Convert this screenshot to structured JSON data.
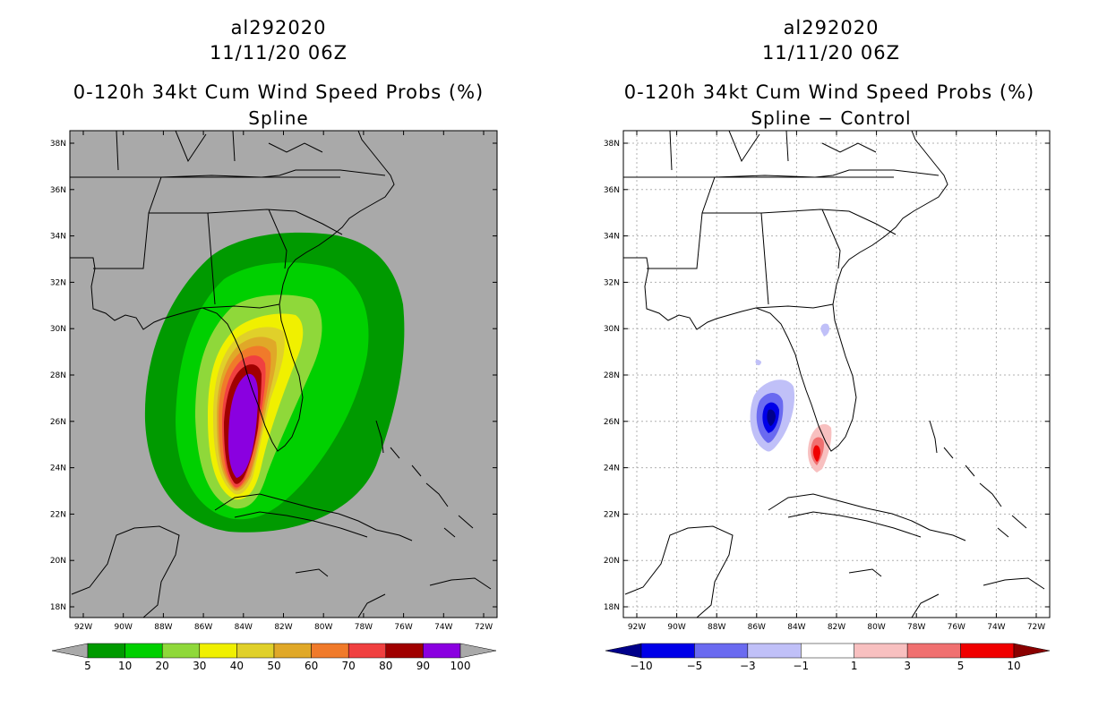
{
  "left": {
    "storm_id": "al292020",
    "datetime": "11/11/20 06Z",
    "product": "0-120h 34kt Cum Wind Speed Probs (%)",
    "variant": "Spline",
    "lat_labels": [
      "38N",
      "36N",
      "34N",
      "32N",
      "30N",
      "28N",
      "26N",
      "24N",
      "22N",
      "20N",
      "18N"
    ],
    "lon_labels": [
      "92W",
      "90W",
      "88W",
      "86W",
      "84W",
      "82W",
      "80W",
      "78W",
      "76W",
      "74W",
      "72W"
    ],
    "colorbar_labels": [
      "5",
      "10",
      "20",
      "30",
      "40",
      "50",
      "60",
      "70",
      "80",
      "90",
      "100"
    ],
    "colors": {
      "background": "#a9a9a9",
      "bins": [
        "#009a00",
        "#00d000",
        "#8fd83a",
        "#f0f000",
        "#e0d02a",
        "#e0a828",
        "#f07a2a",
        "#f04040",
        "#a00000",
        "#8a00e0"
      ]
    }
  },
  "right": {
    "storm_id": "al292020",
    "datetime": "11/11/20 06Z",
    "product": "0-120h 34kt Cum Wind Speed Probs (%)",
    "variant": "Spline − Control",
    "lat_labels": [
      "38N",
      "36N",
      "34N",
      "32N",
      "30N",
      "28N",
      "26N",
      "24N",
      "22N",
      "20N",
      "18N"
    ],
    "lon_labels": [
      "92W",
      "90W",
      "88W",
      "86W",
      "84W",
      "82W",
      "80W",
      "78W",
      "76W",
      "74W",
      "72W"
    ],
    "colorbar_labels": [
      "−10",
      "−5",
      "−3",
      "−1",
      "1",
      "3",
      "5",
      "10"
    ],
    "colors": {
      "bins": [
        "#00008a",
        "#0000e8",
        "#6a6af0",
        "#c0c0f8",
        "#ffffff",
        "#f8c0c0",
        "#f07070",
        "#f00000",
        "#8a0000"
      ]
    }
  }
}
